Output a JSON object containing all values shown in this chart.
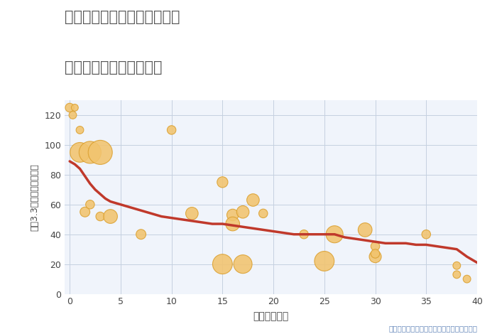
{
  "title_line1": "三重県桑名市長島町西外面の",
  "title_line2": "築年数別中古戸建て価格",
  "xlabel": "築年数（年）",
  "ylabel": "坪（3.3㎡）単価（万円）",
  "annotation": "円の大きさは、取引のあった物件面積を示す",
  "xlim": [
    -0.5,
    40
  ],
  "ylim": [
    0,
    130
  ],
  "xticks": [
    0,
    5,
    10,
    15,
    20,
    25,
    30,
    35,
    40
  ],
  "yticks": [
    0,
    20,
    40,
    60,
    80,
    100,
    120
  ],
  "background_color": "#ffffff",
  "plot_bg_color": "#f0f4fb",
  "grid_color": "#c5d0e0",
  "title_color": "#555555",
  "line_color": "#c0392b",
  "bubble_color": "#f2c46e",
  "bubble_edge_color": "#dba030",
  "scatter_x": [
    0.0,
    0.3,
    0.5,
    1.0,
    1.0,
    1.5,
    2.0,
    2.0,
    3.0,
    3.0,
    4.0,
    7.0,
    10.0,
    12.0,
    15.0,
    15.0,
    16.0,
    16.0,
    17.0,
    17.0,
    18.0,
    19.0,
    23.0,
    25.0,
    26.0,
    29.0,
    30.0,
    30.0,
    30.0,
    35.0,
    38.0,
    38.0,
    39.0
  ],
  "scatter_y": [
    125,
    120,
    125,
    110,
    95,
    55,
    95,
    60,
    95,
    52,
    52,
    40,
    110,
    54,
    75,
    20,
    53,
    47,
    55,
    20,
    63,
    54,
    40,
    22,
    40,
    43,
    25,
    32,
    27,
    40,
    19,
    13,
    10
  ],
  "scatter_size": [
    80,
    60,
    50,
    60,
    400,
    100,
    500,
    80,
    600,
    80,
    200,
    100,
    80,
    160,
    120,
    400,
    140,
    200,
    160,
    350,
    160,
    80,
    80,
    400,
    300,
    200,
    150,
    80,
    80,
    80,
    60,
    60,
    60
  ],
  "line_x": [
    0,
    0.5,
    1,
    1.5,
    2,
    2.5,
    3,
    3.5,
    4,
    5,
    6,
    7,
    8,
    9,
    10,
    11,
    12,
    13,
    14,
    15,
    16,
    17,
    18,
    19,
    20,
    21,
    22,
    23,
    24,
    25,
    26,
    27,
    28,
    29,
    30,
    31,
    32,
    33,
    34,
    35,
    36,
    37,
    38,
    39,
    40
  ],
  "line_y": [
    89,
    87,
    84,
    79,
    74,
    70,
    67,
    64,
    62,
    60,
    58,
    56,
    54,
    52,
    51,
    50,
    49,
    48,
    47,
    47,
    46,
    45,
    44,
    43,
    42,
    41,
    40,
    40,
    40,
    40,
    40,
    38,
    37,
    36,
    35,
    34,
    34,
    34,
    33,
    33,
    32,
    31,
    30,
    25,
    21
  ]
}
